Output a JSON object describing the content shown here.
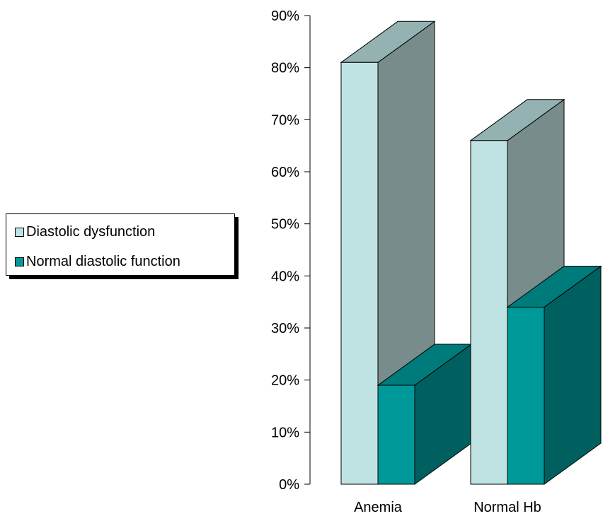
{
  "chart_data": {
    "type": "bar",
    "categories": [
      "Anemia",
      "Normal Hb"
    ],
    "series": [
      {
        "name": "Diastolic dysfunction",
        "values": [
          81,
          66
        ]
      },
      {
        "name": "Normal diastolic function",
        "values": [
          19,
          34
        ]
      }
    ],
    "y_ticks": [
      "0%",
      "10%",
      "20%",
      "30%",
      "40%",
      "50%",
      "60%",
      "70%",
      "80%",
      "90%"
    ],
    "ylim": [
      0,
      90
    ],
    "y_unit": "%",
    "legend_position": "left",
    "grid": false,
    "style": "3d-column"
  },
  "colors": {
    "series1_front": "#bfe3e3",
    "series1_top": "#94b2b2",
    "series1_side": "#788c8c",
    "series2_front": "#009999",
    "series2_top": "#007b7b",
    "series2_side": "#006060"
  }
}
